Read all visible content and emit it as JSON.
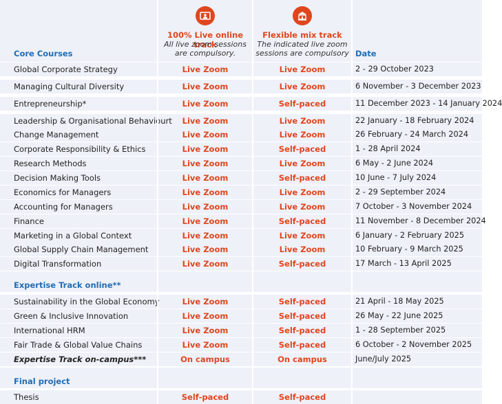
{
  "colors": {
    "accent": "#e0461e",
    "section": "#1f6db5",
    "row_bg": "#eef1f8"
  },
  "header": {
    "track1": {
      "icon": "online-person-icon",
      "title": "100% Live online track",
      "sub1": "All live zoom sessions",
      "sub2": "are compulsory."
    },
    "track2": {
      "icon": "campus-building-icon",
      "title": "Flexible mix track",
      "sub1": "The indicated live zoom",
      "sub2": "sessions are compulsory"
    },
    "section_core": "Core Courses",
    "date_label": "Date"
  },
  "core": [
    {
      "course": "Global Corporate Strategy",
      "t1": "Live Zoom",
      "t2": "Live Zoom",
      "date": "2 - 29 October 2023"
    },
    {
      "course": "Managing Cultural Diversity",
      "t1": "Live Zoom",
      "t2": "Live Zoom",
      "date": "6 November - 3 December 2023"
    },
    {
      "course": "Entrepreneurship*",
      "t1": "Live Zoom",
      "t2": "Self-paced",
      "date": "11 December 2023 - 14 January 2024"
    },
    {
      "course": "Leadership & Organisational Behaviourt",
      "t1": "Live Zoom",
      "t2": "Live Zoom",
      "date": "22 January - 18 February 2024"
    },
    {
      "course": "Change Management",
      "t1": "Live Zoom",
      "t2": "Live Zoom",
      "date": "26 February - 24 March 2024"
    },
    {
      "course": "Corporate Responsibility & Ethics",
      "t1": "Live Zoom",
      "t2": "Self-paced",
      "date": "1 - 28 April 2024"
    },
    {
      "course": "Research Methods",
      "t1": "Live Zoom",
      "t2": "Live Zoom",
      "date": "6 May - 2 June 2024"
    },
    {
      "course": "Decision Making Tools",
      "t1": "Live Zoom",
      "t2": "Self-paced",
      "date": "10 June - 7 July 2024"
    },
    {
      "course": "Economics for Managers",
      "t1": "Live Zoom",
      "t2": "Live Zoom",
      "date": "2 - 29 September 2024"
    },
    {
      "course": "Accounting for Managers",
      "t1": "Live Zoom",
      "t2": "Live Zoom",
      "date": "7 October - 3 November 2024"
    },
    {
      "course": "Finance",
      "t1": "Live Zoom",
      "t2": "Self-paced",
      "date": "11 November - 8 December 2024"
    },
    {
      "course": "Marketing in a Global Context",
      "t1": "Live Zoom",
      "t2": "Live Zoom",
      "date": "6 January - 2 February 2025"
    },
    {
      "course": "Global Supply Chain Management",
      "t1": "Live Zoom",
      "t2": "Live Zoom",
      "date": "10 February - 9 March 2025"
    },
    {
      "course": "Digital Transformation",
      "t1": "Live Zoom",
      "t2": "Self-paced",
      "date": "17 March - 13 April 2025"
    }
  ],
  "section_expertise": "Expertise Track online**",
  "expertise": [
    {
      "course": "Sustainability in the Global Economy",
      "t1": "Live Zoom",
      "t2": "Self-paced",
      "date": "21 April - 18 May 2025"
    },
    {
      "course": "Green & Inclusive Innovation",
      "t1": "Live Zoom",
      "t2": "Self-paced",
      "date": "26 May - 22 June 2025"
    },
    {
      "course": "International HRM",
      "t1": "Live Zoom",
      "t2": "Self-paced",
      "date": "1 - 28 September 2025"
    },
    {
      "course": "Fair Trade & Global Value Chains",
      "t1": "Live Zoom",
      "t2": "Self-paced",
      "date": "6 October - 2 November 2025"
    },
    {
      "course": "Expertise Track on-campus***",
      "t1": "On campus",
      "t2": "On campus",
      "date": "June/July 2025"
    }
  ],
  "section_final": "Final project",
  "final": [
    {
      "course": "Thesis",
      "t1": "Self-paced",
      "t2": "Self-paced",
      "date": ""
    }
  ]
}
